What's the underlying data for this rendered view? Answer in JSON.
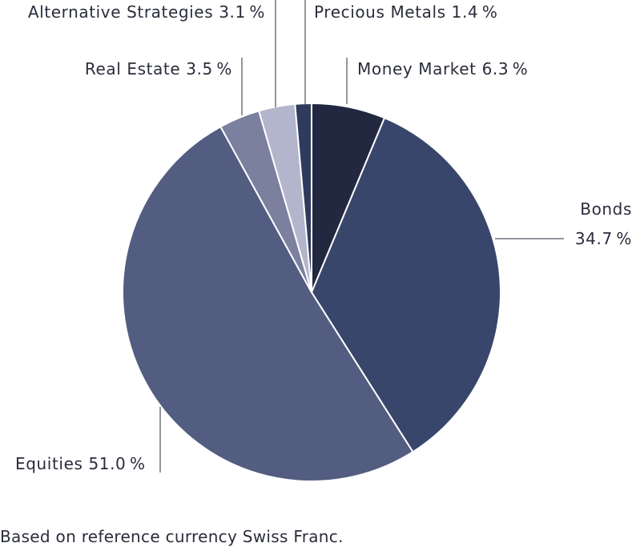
{
  "chart_data": {
    "type": "pie",
    "slices": [
      {
        "name": "Money Market",
        "label": "Money Market 6.3 %",
        "value": 6.3,
        "color": "#22283f"
      },
      {
        "name": "Bonds",
        "label_line1": "Bonds",
        "label_line2": "34.7 %",
        "value": 34.7,
        "color": "#39466b"
      },
      {
        "name": "Equities",
        "label": "Equities 51.0 %",
        "value": 51.0,
        "color": "#535d81"
      },
      {
        "name": "Real Estate",
        "label": "Real Estate 3.5 %",
        "value": 3.5,
        "color": "#7c809f"
      },
      {
        "name": "Alternative Strategies",
        "label": "Alternative Strategies 3.1 %",
        "value": 3.1,
        "color": "#b3b5cc"
      },
      {
        "name": "Precious Metals",
        "label": "Precious Metals 1.4 %",
        "value": 1.4,
        "color": "#2f3a5c"
      }
    ]
  },
  "footnote": "Based on reference currency Swiss Franc."
}
